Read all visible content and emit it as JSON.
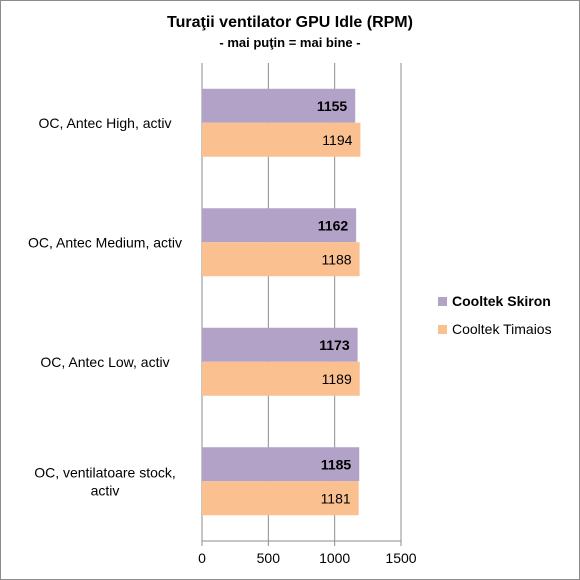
{
  "chart_data": {
    "type": "bar",
    "orientation": "horizontal",
    "title": "Turaţii ventilator GPU Idle (RPM)",
    "subtitle": "- mai puţin = mai bine -",
    "categories": [
      "OC, Antec High, activ",
      "OC, Antec Medium, activ",
      "OC, Antec Low, activ",
      "OC, ventilatoare stock, activ"
    ],
    "category_lines": [
      [
        "OC, Antec High, activ"
      ],
      [
        "OC, Antec Medium, activ"
      ],
      [
        "OC, Antec Low, activ"
      ],
      [
        "OC, ventilatoare stock,",
        "activ"
      ]
    ],
    "series": [
      {
        "name": "Cooltek Skiron",
        "values": [
          1155,
          1162,
          1173,
          1185
        ],
        "color": "#b3a2c7",
        "bold": true
      },
      {
        "name": "Cooltek Timaios",
        "values": [
          1194,
          1188,
          1189,
          1181
        ],
        "color": "#fac090",
        "bold": false
      }
    ],
    "xlim": [
      0,
      1500
    ],
    "xticks": [
      "0",
      "500",
      "1000",
      "1500"
    ],
    "grid": true,
    "legend": "right"
  }
}
